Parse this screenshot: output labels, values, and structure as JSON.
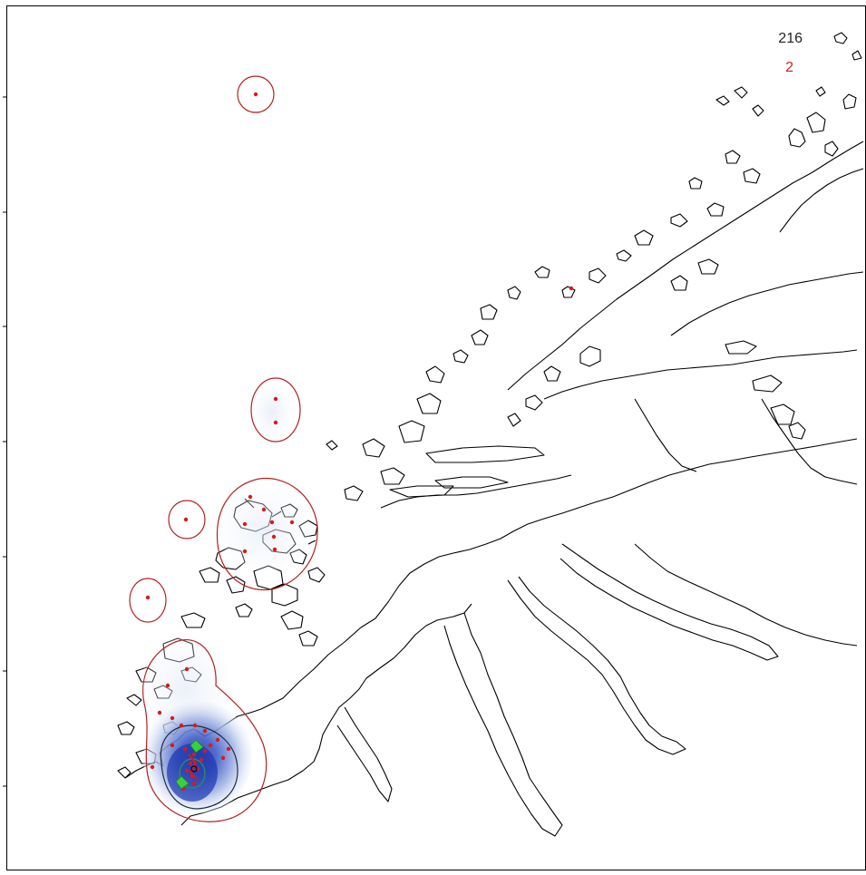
{
  "legend": {
    "total_count": "216",
    "highlight_count": "2"
  },
  "colors": {
    "coastline": "#000000",
    "outer_contour": "#b22222",
    "inner_contour": "#1f2d3d",
    "core_contour": "#2e8b57",
    "density_light": "#e8eef8",
    "density_mid": "#8fa6dd",
    "density_dark": "#1c39b8",
    "observation_point": "#d91a1a",
    "highlight_marker": "#37d13a",
    "total_count_text": "#222222",
    "highlight_count_text": "#d22020"
  },
  "layers": [
    "coastline",
    "density-surface",
    "home-range-contours",
    "observation-points",
    "highlight-markers"
  ]
}
